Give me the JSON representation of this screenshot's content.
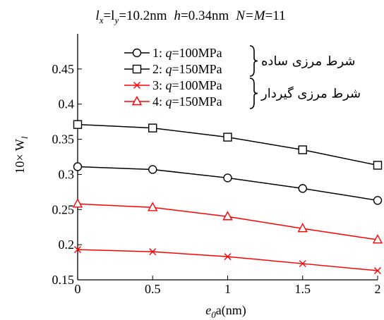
{
  "chart_data": {
    "type": "line",
    "header": {
      "lx": "l",
      "lx_sub": "x",
      "ly_eq": "=l",
      "ly_sub": "y",
      "len_val": "=10.2nm",
      "h_sym": "h",
      "h_val": "=0.34nm",
      "nm_sym": "N=M",
      "nm_val": "=11"
    },
    "xlabel": {
      "main": "e",
      "sub": "0",
      "rest": "a(nm)"
    },
    "ylabel": {
      "prefix": "10× W",
      "sub": "l"
    },
    "xlim": [
      0,
      2
    ],
    "ylim": [
      0.15,
      0.5
    ],
    "x_ticks": [
      {
        "v": 0,
        "label": "0"
      },
      {
        "v": 0.5,
        "label": "0.5"
      },
      {
        "v": 1,
        "label": "1"
      },
      {
        "v": 1.5,
        "label": "1.5"
      },
      {
        "v": 2,
        "label": "2"
      }
    ],
    "y_ticks": [
      {
        "v": 0.15,
        "label": "0.15"
      },
      {
        "v": 0.2,
        "label": "0.2"
      },
      {
        "v": 0.25,
        "label": "0.25"
      },
      {
        "v": 0.3,
        "label": "0.3"
      },
      {
        "v": 0.35,
        "label": "0.35"
      },
      {
        "v": 0.4,
        "label": "0.4"
      },
      {
        "v": 0.45,
        "label": "0.45"
      }
    ],
    "x": [
      0,
      0.5,
      1,
      1.5,
      2
    ],
    "series": [
      {
        "name": "1: q=100MPa",
        "num": "1: ",
        "q": "q",
        "val": "=100MPa",
        "color": "#000000",
        "marker": "circle",
        "values": [
          0.311,
          0.307,
          0.295,
          0.28,
          0.263
        ]
      },
      {
        "name": "2: q=150MPa",
        "num": "2: ",
        "q": "q",
        "val": "=150MPa",
        "color": "#000000",
        "marker": "square",
        "values": [
          0.371,
          0.366,
          0.353,
          0.335,
          0.313
        ]
      },
      {
        "name": "3: q=100MPa",
        "num": "3: ",
        "q": "q",
        "val": "=100MPa",
        "color": "#ff0000",
        "marker": "x",
        "values": [
          0.193,
          0.19,
          0.183,
          0.173,
          0.163
        ]
      },
      {
        "name": "4: q=150MPa",
        "num": "4: ",
        "q": "q",
        "val": "=150MPa",
        "color": "#ff0000",
        "marker": "triangle",
        "values": [
          0.258,
          0.253,
          0.24,
          0.223,
          0.207
        ]
      }
    ],
    "groups": [
      {
        "label": "شرط مرزی ساده",
        "members": [
          1,
          2
        ]
      },
      {
        "label": "شرط مرزی گیردار",
        "members": [
          3,
          4
        ]
      }
    ],
    "legend_position": "top",
    "grid": false
  }
}
